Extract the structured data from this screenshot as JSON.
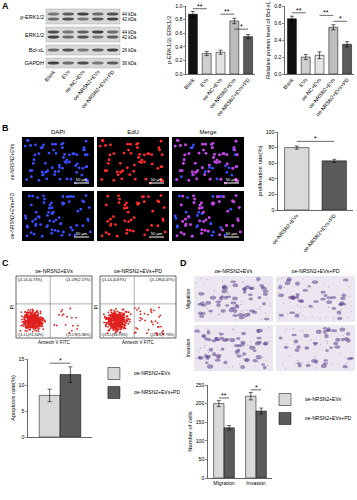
{
  "chart_data": [
    {
      "type": "bar",
      "y_label": "p-ERK1/2/ ERK1/2",
      "categories": [
        "Blank",
        "EVs",
        "oe-NC+EVs",
        "oe-NRSN2+EVs",
        "oe-NRSN2+EVs+PD"
      ],
      "values": [
        0.88,
        0.3,
        0.32,
        0.78,
        0.55
      ],
      "errors": [
        0.04,
        0.03,
        0.03,
        0.04,
        0.03
      ],
      "colors": [
        "#111111",
        "#cfcfcf",
        "#e4e4e4",
        "#bdbdbd",
        "#5a5a5a"
      ],
      "ylim": [
        0,
        1.0
      ],
      "yticks": [
        {
          "value": 0,
          "label": "0.0"
        },
        0.2,
        0.4,
        0.6,
        0.8,
        {
          "value": 1,
          "label": "1.0"
        }
      ],
      "grid": false,
      "annotations": [
        {
          "text": "**",
          "from": "Blank",
          "to": "EVs",
          "y": 0.96
        },
        {
          "text": "**",
          "from": "oe-NC+EVs",
          "to": "oe-NRSN2+EVs",
          "y": 0.88
        },
        {
          "text": "*",
          "from": "oe-NRSN2+EVs",
          "to": "oe-NRSN2+EVs+PD",
          "y": 0.66
        }
      ]
    },
    {
      "type": "bar",
      "y_label": "Relative protein level of Bcl-xL",
      "categories": [
        "Blank",
        "EVs",
        "oe-NC+EVs",
        "oe-NRSN2+EVs",
        "oe-NRSN2+EVs+PD"
      ],
      "values": [
        0.65,
        0.2,
        0.22,
        0.55,
        0.35
      ],
      "errors": [
        0.03,
        0.03,
        0.04,
        0.03,
        0.03
      ],
      "colors": [
        "#111111",
        "#cfcfcf",
        "#e4e4e4",
        "#bdbdbd",
        "#5a5a5a"
      ],
      "ylim": [
        0,
        0.8
      ],
      "yticks": [
        {
          "value": 0,
          "label": "0.0"
        },
        0.2,
        0.4,
        0.6,
        0.8
      ],
      "grid": false,
      "annotations": [
        {
          "text": "**",
          "from": "Blank",
          "to": "EVs",
          "y": 0.72
        },
        {
          "text": "**",
          "from": "oe-NC+EVs",
          "to": "oe-NRSN2+EVs",
          "y": 0.69
        },
        {
          "text": "*",
          "from": "oe-NRSN2+EVs",
          "to": "oe-NRSN2+EVs+PD",
          "y": 0.62
        }
      ]
    },
    {
      "type": "bar",
      "y_label": "proliferation rate(%)",
      "categories": [
        "oe-NRSN2+EVs",
        "oe-NRSN2+EVs+PD"
      ],
      "values": [
        80,
        63
      ],
      "errors": [
        2,
        2
      ],
      "colors": [
        "#d9d9d9",
        "#5a5a5a"
      ],
      "ylim": [
        0,
        100
      ],
      "yticks": [
        0,
        20,
        40,
        60,
        80,
        100
      ],
      "grid": false,
      "annotations": [
        {
          "text": "*",
          "from": "oe-NRSN2+EVs",
          "to": "oe-NRSN2+EVs+PD",
          "y": 88
        }
      ]
    },
    {
      "type": "bar",
      "y_label": "Apoptosis rate(%)",
      "categories": [
        null
      ],
      "series": [
        {
          "name": "oe-NRSN2+EVs",
          "color": "#d9d9d9",
          "values": [
            8
          ],
          "errors": [
            1.2
          ]
        },
        {
          "name": "oe-NRSN2+EVs+PD",
          "color": "#5a5a5a",
          "values": [
            12
          ],
          "errors": [
            1.5
          ]
        }
      ],
      "ylim": [
        0,
        15
      ],
      "yticks": [
        0,
        5,
        10,
        15
      ],
      "grid": false,
      "legend": "right",
      "annotations": [
        {
          "text": "*",
          "y": 14.2
        }
      ]
    },
    {
      "type": "bar",
      "y_label": "Number of cells",
      "categories": [
        "Migration",
        "Invasion"
      ],
      "series": [
        {
          "name": "oe-NRSN2+EVs",
          "color": "#d9d9d9",
          "values": [
            200,
            220
          ],
          "errors": [
            8,
            10
          ]
        },
        {
          "name": "oe-NRSN2+EVs+PD",
          "color": "#5a5a5a",
          "values": [
            135,
            180
          ],
          "errors": [
            6,
            8
          ]
        }
      ],
      "ylim": [
        0,
        250
      ],
      "yticks": [
        0,
        50,
        100,
        150,
        200,
        250
      ],
      "grid": false,
      "legend": "right",
      "annotations": [
        {
          "text": "**",
          "category": "Migration",
          "y": 215
        },
        {
          "text": "*",
          "category": "Invasion",
          "y": 237
        }
      ]
    }
  ],
  "figure": {
    "panel_letters": [
      "A",
      "B",
      "C",
      "D"
    ],
    "blot": {
      "rows": [
        {
          "label": "p-ERK1/2",
          "kda": [
            "44 kDa",
            "42 kDa"
          ]
        },
        {
          "label": "ERK1/2",
          "kda": [
            "44 kDa",
            "42 kDa"
          ]
        },
        {
          "label": "Bcl-xL",
          "kda": [
            "26 kDa"
          ]
        },
        {
          "label": "GAPDH",
          "kda": [
            "36 kDa"
          ]
        }
      ],
      "lanes": [
        "Blank",
        "EVs",
        "oe-NC+EVs",
        "oe-NRSN2+EVs",
        "oe-NRSN2+EVs+PD"
      ]
    },
    "edu": {
      "channels": [
        "DAPI",
        "EdU",
        "Merge"
      ],
      "rows": [
        "oe-NRSN2+EVs",
        "oe-NRSN2+EVs+PD"
      ],
      "scale_bar": "50 μm"
    },
    "flow": {
      "x_label": "Annexin V FITC",
      "y_label": "PI",
      "plots": [
        {
          "title": "oe-NRSN2+EVs",
          "quadrants": [
            "Q1-UL(0.73%)",
            "Q1-UR(2.57%)",
            "Q1-LL(91.34%)",
            "Q1-LR(5.36%)"
          ]
        },
        {
          "title": "oe-NRSN2+EVs+PD",
          "quadrants": [
            "Q1-UL(0.87%)",
            "Q1-UR(4.47%)",
            "Q1-LL(86.93%)",
            "Q1-LR(7.73%)"
          ]
        }
      ]
    },
    "transwell": {
      "columns": [
        "oe-NRSN2+EVs",
        "oe-NRSN2+EVs+PD"
      ],
      "rows": [
        "Migration",
        "Invasion"
      ]
    }
  }
}
